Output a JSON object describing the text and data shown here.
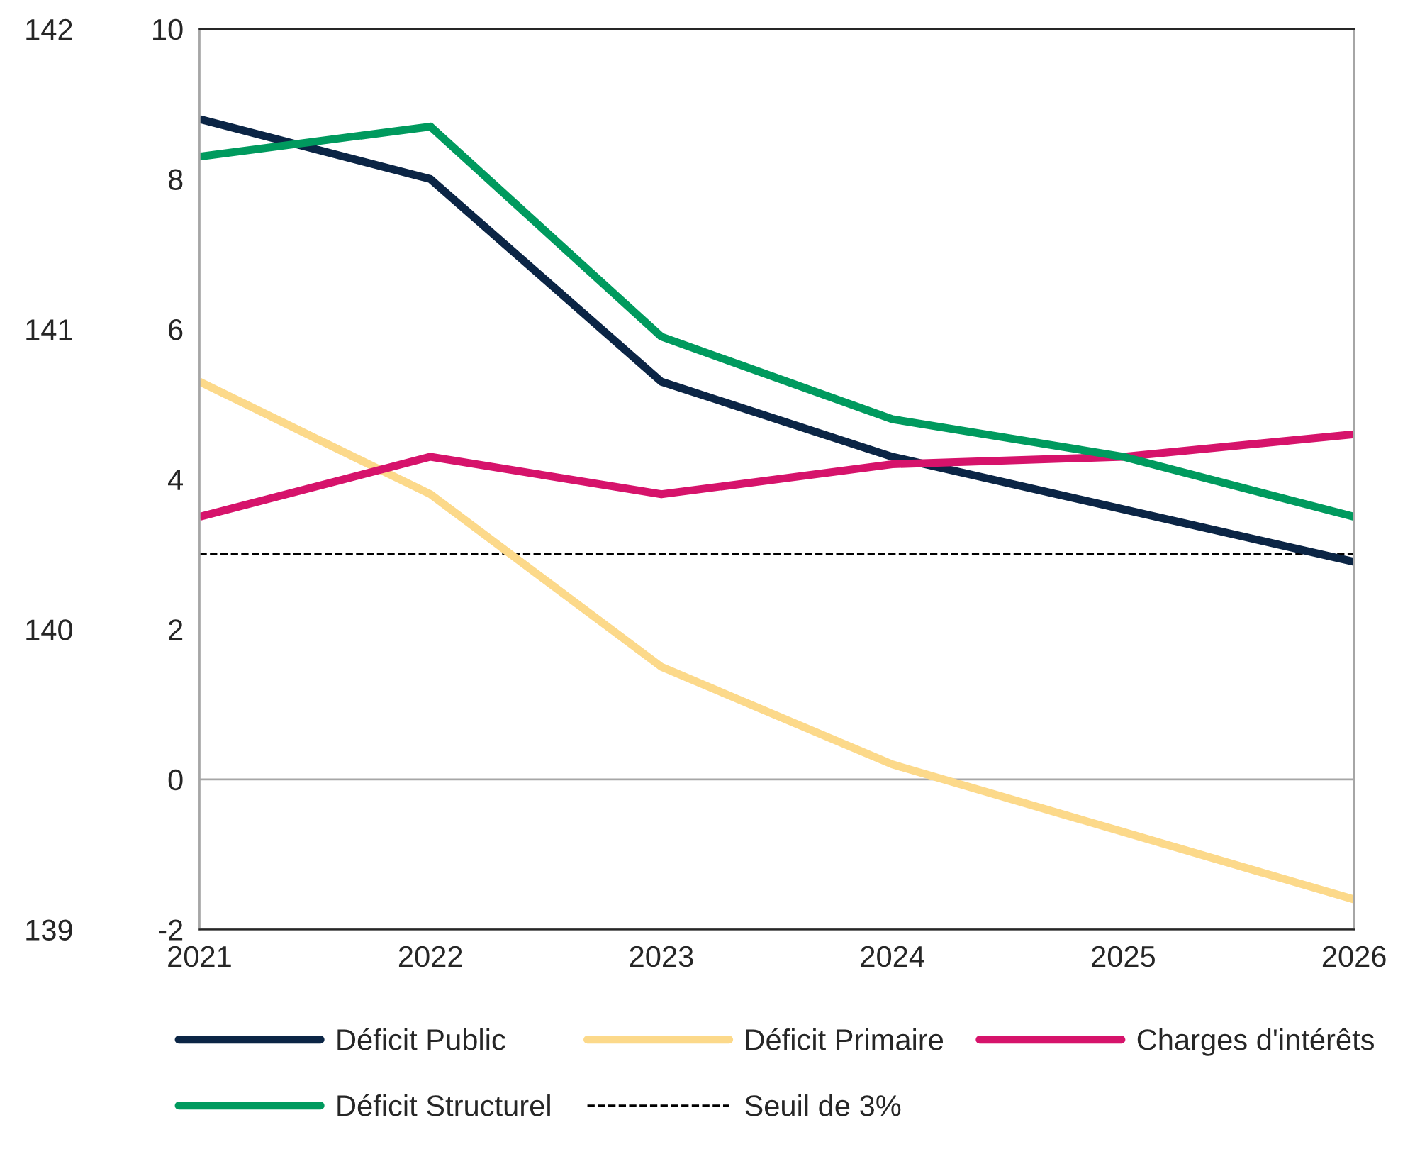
{
  "chart_data": {
    "type": "line",
    "x": [
      2021,
      2022,
      2023,
      2024,
      2025,
      2026
    ],
    "xlim": [
      2021,
      2026
    ],
    "xticks": [
      2021,
      2022,
      2023,
      2024,
      2025,
      2026
    ],
    "ylim": [
      -2,
      10
    ],
    "yticks": [
      -2,
      0,
      2,
      4,
      6,
      8,
      10
    ],
    "y2lim": [
      139,
      142
    ],
    "y2ticks": [
      139,
      140,
      141,
      142
    ],
    "series": [
      {
        "name": "Déficit Public",
        "color": "#0b2545",
        "values": [
          8.8,
          8.0,
          5.3,
          4.3,
          3.6,
          2.9
        ]
      },
      {
        "name": "Déficit Primaire",
        "color": "#fcd98a",
        "values": [
          5.3,
          3.8,
          1.5,
          0.2,
          -0.7,
          -1.6
        ]
      },
      {
        "name": "Charges d'intérêts",
        "color": "#d6136b",
        "values": [
          3.5,
          4.3,
          3.8,
          4.2,
          4.3,
          4.6
        ]
      },
      {
        "name": "Déficit Structurel",
        "color": "#009a5e",
        "values": [
          8.3,
          8.7,
          5.9,
          4.8,
          4.3,
          3.5
        ]
      }
    ],
    "ref_lines": [
      {
        "axis": "y",
        "value": 0,
        "label": null,
        "color": "#a6a6a6",
        "line_style": "solid"
      },
      {
        "axis": "y",
        "value": 3,
        "label": "Seuil de 3%",
        "color": "#000000",
        "line_style": "dashed"
      }
    ],
    "grid": false,
    "legend": "bottom",
    "marker": "none",
    "line_style": "solid"
  }
}
